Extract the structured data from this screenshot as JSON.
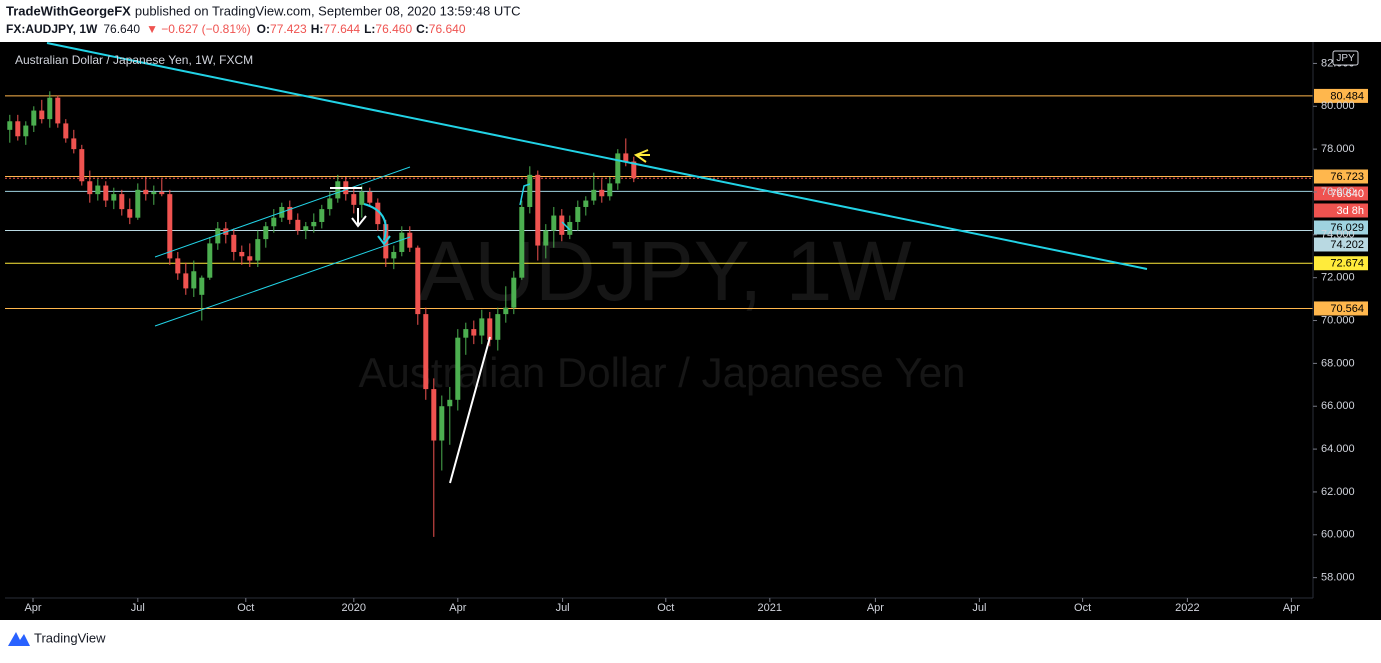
{
  "header": {
    "publisher": "TradeWithGeorgeFX",
    "published": "published on TradingView.com, September 08, 2020 13:59:48 UTC",
    "symbol": "FX:AUDJPY, 1W",
    "price": "76.640",
    "change": "▼ −0.627 (−0.81%)",
    "ohlc": [
      [
        "O:",
        "77.423"
      ],
      [
        "H:",
        "77.644"
      ],
      [
        "L:",
        "76.460"
      ],
      [
        "C:",
        "76.640"
      ]
    ]
  },
  "footer": {
    "brand": "TradingView"
  },
  "chart_data": {
    "type": "candlestick",
    "title": "Australian Dollar / Japanese Yen, 1W, FXCM",
    "watermark": [
      "AUDJPY, 1W",
      "Australian Dollar / Japanese Yen"
    ],
    "currency": "JPY",
    "up_color": "#4caf50",
    "down_color": "#ef5350",
    "categories": [
      null,
      null,
      null,
      null,
      null,
      null,
      null,
      null,
      null,
      null,
      null,
      null,
      null,
      null,
      null,
      null,
      null,
      null,
      null,
      null,
      null,
      null,
      null,
      null,
      null,
      null,
      null,
      null,
      null,
      null,
      null,
      null,
      null,
      null,
      null,
      null,
      null,
      null,
      null,
      null,
      null,
      null,
      null,
      null,
      null,
      null,
      null,
      null,
      null,
      null,
      null,
      null,
      null,
      null,
      null,
      null,
      null,
      null,
      null,
      null,
      null,
      null,
      null,
      null,
      null,
      null,
      null,
      null,
      null,
      null,
      null,
      null,
      null,
      null,
      null,
      null,
      null,
      null,
      null
    ],
    "open": [
      78.9,
      79.3,
      78.6,
      79.1,
      79.8,
      79.4,
      80.4,
      79.2,
      78.5,
      78.0,
      76.5,
      75.9,
      76.3,
      75.6,
      75.9,
      75.2,
      74.8,
      76.1,
      75.9,
      76.0,
      75.9,
      72.9,
      72.2,
      71.5,
      71.2,
      72.0,
      73.6,
      74.3,
      74.0,
      73.2,
      73.0,
      72.8,
      73.8,
      74.4,
      74.8,
      75.3,
      74.7,
      74.2,
      74.4,
      74.6,
      75.2,
      75.7,
      76.5,
      75.9,
      75.4,
      76.0,
      75.5,
      74.5,
      72.9,
      73.2,
      74.1,
      73.4,
      70.3,
      66.8,
      64.4,
      66.0,
      66.3,
      69.2,
      69.6,
      69.3,
      70.1,
      69.1,
      70.3,
      70.6,
      72.0,
      75.3,
      76.8,
      73.5,
      74.2,
      74.9,
      74.0,
      74.6,
      75.3,
      75.6,
      76.1,
      75.8,
      76.4,
      77.8,
      77.423
    ],
    "high": [
      79.6,
      79.6,
      79.3,
      80.0,
      80.3,
      80.7,
      80.5,
      79.4,
      78.9,
      78.2,
      77.0,
      76.6,
      76.5,
      76.2,
      76.1,
      75.7,
      76.4,
      76.7,
      76.3,
      76.6,
      76.1,
      73.2,
      72.7,
      72.8,
      72.1,
      73.9,
      74.6,
      74.6,
      74.3,
      73.5,
      73.6,
      74.2,
      74.6,
      75.2,
      75.5,
      75.6,
      75.0,
      74.6,
      75.0,
      75.4,
      76.0,
      76.8,
      76.7,
      76.2,
      76.3,
      76.2,
      75.7,
      74.7,
      73.5,
      74.4,
      74.4,
      73.5,
      70.6,
      67.3,
      66.5,
      66.9,
      69.6,
      69.9,
      70.0,
      70.5,
      70.4,
      70.6,
      71.6,
      72.3,
      75.6,
      77.2,
      77.0,
      74.5,
      75.3,
      75.2,
      74.9,
      75.6,
      75.8,
      76.9,
      76.6,
      76.7,
      78.0,
      78.5,
      77.644
    ],
    "low": [
      78.3,
      78.4,
      78.2,
      78.8,
      79.2,
      79.0,
      79.0,
      78.3,
      77.8,
      76.3,
      75.5,
      75.6,
      75.3,
      75.2,
      74.9,
      74.5,
      74.7,
      75.6,
      75.4,
      75.8,
      72.6,
      71.9,
      71.2,
      71.1,
      70.0,
      71.9,
      73.3,
      73.6,
      72.8,
      72.6,
      72.5,
      72.5,
      73.4,
      74.1,
      74.6,
      74.5,
      74.0,
      73.8,
      74.1,
      74.3,
      74.9,
      75.5,
      75.6,
      75.0,
      74.8,
      75.3,
      74.2,
      72.5,
      72.4,
      73.0,
      73.2,
      69.8,
      66.3,
      59.9,
      63.0,
      64.2,
      65.8,
      68.4,
      68.9,
      68.9,
      68.8,
      68.6,
      69.9,
      70.3,
      71.9,
      75.0,
      72.8,
      72.9,
      73.4,
      73.7,
      73.8,
      74.2,
      74.9,
      75.4,
      75.5,
      75.6,
      76.1,
      77.2,
      76.46
    ],
    "close": [
      79.3,
      78.6,
      79.1,
      79.8,
      79.4,
      80.4,
      79.2,
      78.5,
      78.0,
      76.5,
      75.9,
      76.3,
      75.6,
      75.9,
      75.2,
      74.8,
      76.1,
      75.9,
      76.0,
      75.9,
      72.9,
      72.2,
      71.5,
      72.3,
      72.0,
      73.6,
      74.3,
      74.0,
      73.2,
      73.0,
      72.8,
      73.8,
      74.4,
      74.8,
      75.3,
      74.7,
      74.2,
      74.4,
      74.6,
      75.2,
      75.7,
      76.5,
      75.9,
      75.4,
      76.0,
      75.5,
      74.5,
      72.9,
      73.2,
      74.1,
      73.4,
      70.3,
      66.8,
      64.4,
      66.0,
      66.3,
      69.2,
      69.6,
      69.3,
      70.1,
      69.1,
      70.3,
      70.6,
      72.0,
      75.3,
      76.8,
      73.5,
      74.2,
      74.9,
      74.0,
      74.6,
      75.3,
      75.6,
      76.1,
      75.8,
      76.4,
      77.8,
      77.423,
      76.64
    ],
    "xlim": [
      -0.6,
      162.9
    ],
    "xticks": [
      {
        "value": 2.9,
        "label": "Apr"
      },
      {
        "value": 16,
        "label": "Jul"
      },
      {
        "value": 29.5,
        "label": "Oct"
      },
      {
        "value": 43,
        "label": "2020"
      },
      {
        "value": 56,
        "label": "Apr"
      },
      {
        "value": 69.1,
        "label": "Jul"
      },
      {
        "value": 82,
        "label": "Oct"
      },
      {
        "value": 95,
        "label": "2021"
      },
      {
        "value": 108.2,
        "label": "Apr"
      },
      {
        "value": 121.2,
        "label": "Jul"
      },
      {
        "value": 134.1,
        "label": "Oct"
      },
      {
        "value": 147.2,
        "label": "2022"
      },
      {
        "value": 160.2,
        "label": "Apr"
      }
    ],
    "ylim": [
      57.05,
      83.0
    ],
    "yticks": [
      {
        "value": 58,
        "label": "58.000"
      },
      {
        "value": 60,
        "label": "60.000"
      },
      {
        "value": 62,
        "label": "62.000"
      },
      {
        "value": 64,
        "label": "64.000"
      },
      {
        "value": 66,
        "label": "66.000"
      },
      {
        "value": 68,
        "label": "68.000"
      },
      {
        "value": 70,
        "label": "70.000"
      },
      {
        "value": 72,
        "label": "72.000"
      },
      {
        "value": 74,
        "label": "74.000"
      },
      {
        "value": 76,
        "label": "76.000"
      },
      {
        "value": 78,
        "label": "78.000"
      },
      {
        "value": 80,
        "label": "80.000"
      },
      {
        "value": 82,
        "label": "82.000"
      }
    ],
    "levels": [
      {
        "value": 80.484,
        "color": "#ffb74d",
        "text_color": "#000000"
      },
      {
        "value": 76.723,
        "color": "#ffb74d",
        "text_color": "#000000"
      },
      {
        "value": 76.64,
        "label": "76.640",
        "color": "#ef5350",
        "text_color": "#ffffff",
        "dotted": true,
        "countdown": "3d 8h"
      },
      {
        "value": 76.029,
        "color": "#9fd3e0",
        "text_color": "#000000"
      },
      {
        "value": 74.202,
        "color": "#b9d9e2",
        "text_color": "#000000"
      },
      {
        "value": 72.674,
        "color": "#ffeb3b",
        "text_color": "#000000"
      },
      {
        "value": 70.564,
        "color": "#ffb74d",
        "text_color": "#000000"
      }
    ]
  }
}
